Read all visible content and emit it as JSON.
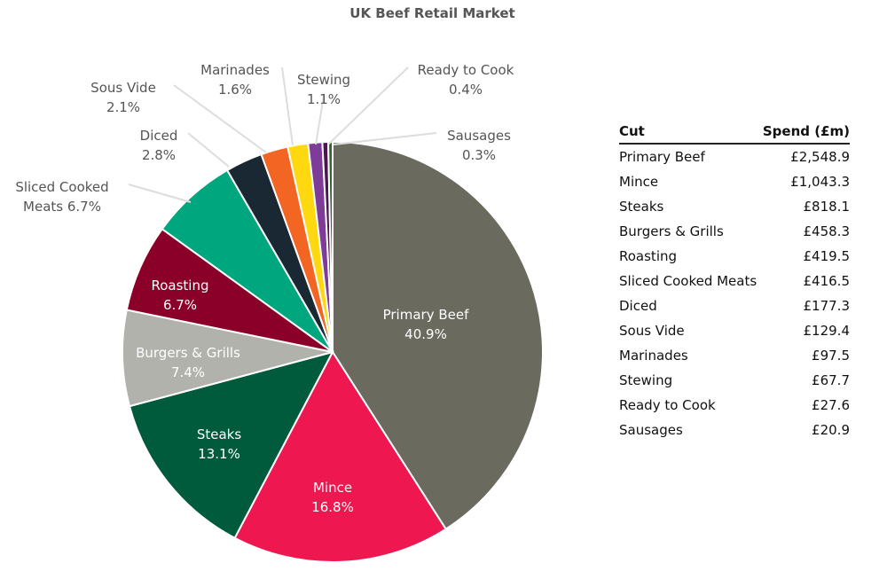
{
  "chart_data": {
    "type": "pie",
    "title": "UK Beef Retail Market",
    "slices": [
      {
        "label": "Primary Beef",
        "pct_label": "40.9%",
        "value": 2548.9,
        "color": "#6a6a5f"
      },
      {
        "label": "Mince",
        "pct_label": "16.8%",
        "value": 1043.3,
        "color": "#ee174f"
      },
      {
        "label": "Steaks",
        "pct_label": "13.1%",
        "value": 818.1,
        "color": "#005a3c"
      },
      {
        "label": "Burgers & Grills",
        "pct_label": "7.4%",
        "value": 458.3,
        "color": "#b2b2ad"
      },
      {
        "label": "Roasting",
        "pct_label": "6.7%",
        "value": 419.5,
        "color": "#8b0029"
      },
      {
        "label": "Sliced Cooked Meats",
        "pct_label": "6.7%",
        "value": 416.5,
        "color": "#00a67e"
      },
      {
        "label": "Diced",
        "pct_label": "2.8%",
        "value": 177.3,
        "color": "#1a2833"
      },
      {
        "label": "Sous Vide",
        "pct_label": "2.1%",
        "value": 129.4,
        "color": "#f26522"
      },
      {
        "label": "Marinades",
        "pct_label": "1.6%",
        "value": 97.5,
        "color": "#ffd80f"
      },
      {
        "label": "Stewing",
        "pct_label": "1.1%",
        "value": 67.7,
        "color": "#7d3c98"
      },
      {
        "label": "Ready to Cook",
        "pct_label": "0.4%",
        "value": 27.6,
        "color": "#4a1550"
      },
      {
        "label": "Sausages",
        "pct_label": "0.3%",
        "value": 20.9,
        "color": "#2d6a2a"
      }
    ],
    "table": {
      "headers": [
        "Cut",
        "Spend (£m)"
      ],
      "rows": [
        [
          "Primary Beef",
          "£2,548.9"
        ],
        [
          "Mince",
          "£1,043.3"
        ],
        [
          "Steaks",
          "£818.1"
        ],
        [
          "Burgers & Grills",
          "£458.3"
        ],
        [
          "Roasting",
          "£419.5"
        ],
        [
          "Sliced Cooked Meats",
          "£416.5"
        ],
        [
          "Diced",
          "£177.3"
        ],
        [
          "Sous Vide",
          "£129.4"
        ],
        [
          "Marinades",
          "£97.5"
        ],
        [
          "Stewing",
          "£67.7"
        ],
        [
          "Ready to Cook",
          "£27.6"
        ],
        [
          "Sausages",
          "£20.9"
        ]
      ]
    }
  }
}
